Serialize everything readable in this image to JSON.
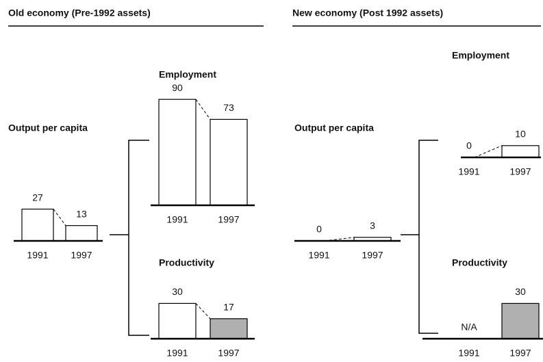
{
  "sections": [
    "Old economy (Pre-1992 assets)",
    "New economy (Post 1992 assets)"
  ],
  "chart_data": [
    {
      "type": "bar",
      "title": "Output per capita",
      "categories": [
        "1991",
        "1997"
      ],
      "values": [
        27,
        13
      ],
      "colors": [
        "#ffffff",
        "#ffffff"
      ]
    },
    {
      "type": "bar",
      "title": "Employment",
      "categories": [
        "1991",
        "1997"
      ],
      "values": [
        90,
        73
      ],
      "colors": [
        "#ffffff",
        "#ffffff"
      ]
    },
    {
      "type": "bar",
      "title": "Productivity",
      "categories": [
        "1991",
        "1997"
      ],
      "values": [
        30,
        17
      ],
      "colors": [
        "#ffffff",
        "#b0b0b0"
      ]
    },
    {
      "type": "bar",
      "title": "Output per capita",
      "categories": [
        "1991",
        "1997"
      ],
      "values": [
        0,
        3
      ],
      "colors": [
        "#ffffff",
        "#ffffff"
      ]
    },
    {
      "type": "bar",
      "title": "Employment",
      "categories": [
        "1991",
        "1997"
      ],
      "values": [
        0,
        10
      ],
      "colors": [
        "#ffffff",
        "#ffffff"
      ]
    },
    {
      "type": "bar",
      "title": "Productivity",
      "categories": [
        "1991",
        "1997"
      ],
      "values": [
        null,
        30
      ],
      "value_labels": [
        "N/A",
        "30"
      ],
      "colors": [
        "#ffffff",
        "#b0b0b0"
      ]
    }
  ]
}
